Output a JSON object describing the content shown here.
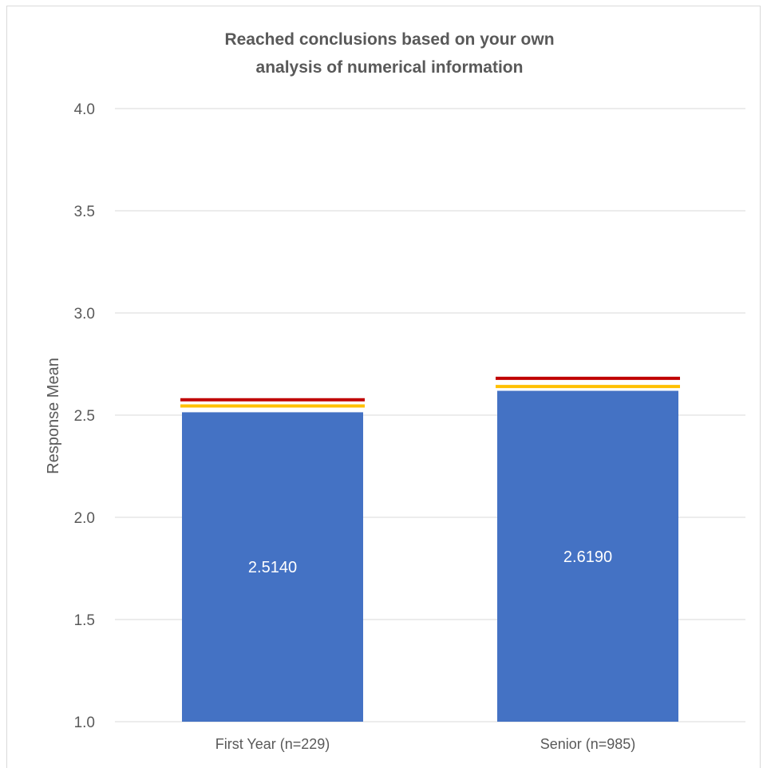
{
  "chart_data": {
    "type": "bar",
    "title_lines": [
      "Reached conclusions based on your own",
      "analysis of numerical information"
    ],
    "xlabel": "",
    "ylabel": "Response Mean",
    "ylim": [
      1.0,
      4.0
    ],
    "yticks": [
      "1.0",
      "1.5",
      "2.0",
      "2.5",
      "3.0",
      "3.5",
      "4.0"
    ],
    "categories": [
      "First Year (n=229)",
      "Senior (n=985)"
    ],
    "values": [
      2.514,
      2.619
    ],
    "data_labels": [
      "2.5140",
      "2.6190"
    ],
    "reference_lines": [
      {
        "color": "#c00000",
        "values": [
          2.575,
          2.68
        ]
      },
      {
        "color": "#ffc000",
        "values": [
          2.545,
          2.64
        ]
      }
    ],
    "bar_color": "#4472c4",
    "grid": true,
    "legend": "none"
  }
}
